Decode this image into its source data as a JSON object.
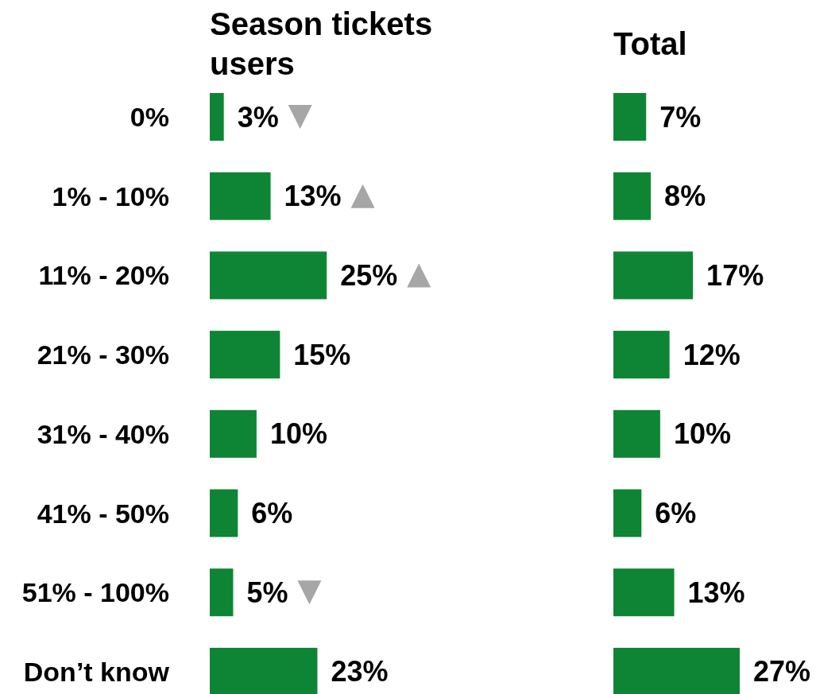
{
  "chart_data": [
    {
      "type": "bar",
      "orientation": "horizontal",
      "title": "Season tickets users",
      "categories": [
        "0%",
        "1% - 10%",
        "11% - 20%",
        "21% - 30%",
        "31% - 40%",
        "41% - 50%",
        "51% - 100%",
        "Don’t know"
      ],
      "values": [
        3,
        13,
        25,
        15,
        10,
        6,
        5,
        23
      ],
      "color": "#0e8534",
      "value_labels": [
        "3%",
        "13%",
        "25%",
        "15%",
        "10%",
        "6%",
        "5%",
        "23%"
      ]
    },
    {
      "type": "bar",
      "orientation": "horizontal",
      "title": "Total",
      "categories": [
        null,
        null,
        null,
        null,
        null,
        null,
        null,
        null
      ],
      "values": [
        7,
        8,
        17,
        12,
        10,
        6,
        13,
        27
      ],
      "color": "#0e8534",
      "value_labels": [
        "7%",
        "8%",
        "17%",
        "12%",
        "10%",
        "6%",
        "13%",
        "27%"
      ]
    }
  ]
}
